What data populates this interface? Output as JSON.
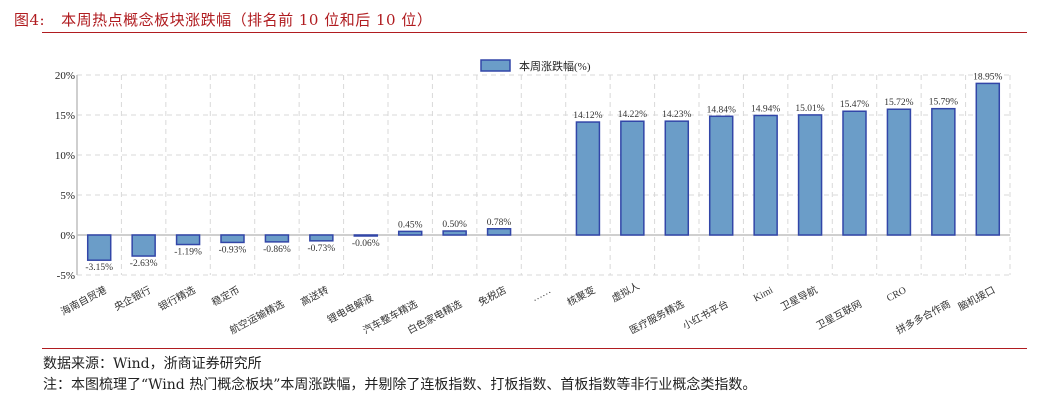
{
  "figure": {
    "number": "图4:",
    "title": "本周热点概念板块涨跌幅（排名前 10 位和后 10 位）",
    "source": "数据来源：Wind，浙商证券研究所",
    "note": "注：本图梳理了“Wind 热门概念板块”本周涨跌幅，并剔除了连板指数、打板指数、首板指数等非行业概念类指数。"
  },
  "colors": {
    "title": "#b01c20",
    "bar_fill": "#6b9dc8",
    "bar_border": "#3246a8",
    "grid": "#d9d9d9",
    "axis": "#bfbfbf"
  },
  "chart_data": {
    "type": "bar",
    "title": "",
    "legend": [
      "本周涨跌幅(%)"
    ],
    "legend_position": "top-center",
    "xlabel": "",
    "ylabel": "",
    "ylim": [
      -5,
      20
    ],
    "yticks": [
      "-5%",
      "0%",
      "5%",
      "10%",
      "15%",
      "20%"
    ],
    "grid": true,
    "categories": [
      "海南自贸港",
      "央企银行",
      "银行精选",
      "稳定币",
      "航空运输精选",
      "高送转",
      "锂电电解液",
      "汽车整车精选",
      "白色家电精选",
      "免税店",
      "……",
      "核聚变",
      "虚拟人",
      "医疗服务精选",
      "小红书平台",
      "Kimi",
      "卫星导航",
      "卫星互联网",
      "CRO",
      "拼多多合作商",
      "脑机接口"
    ],
    "values": [
      -3.15,
      -2.63,
      -1.19,
      -0.93,
      -0.86,
      -0.73,
      -0.06,
      0.45,
      0.5,
      0.78,
      null,
      14.12,
      14.22,
      14.23,
      14.84,
      14.94,
      15.01,
      15.47,
      15.72,
      15.79,
      18.95
    ],
    "labels": [
      "-3.15%",
      "-2.63%",
      "-1.19%",
      "-0.93%",
      "-0.86%",
      "-0.73%",
      "-0.06%",
      "0.45%",
      "0.50%",
      "0.78%",
      "",
      "14.12%",
      "14.22%",
      "14.23%",
      "14.84%",
      "14.94%",
      "15.01%",
      "15.47%",
      "15.72%",
      "15.79%",
      "18.95%"
    ]
  }
}
